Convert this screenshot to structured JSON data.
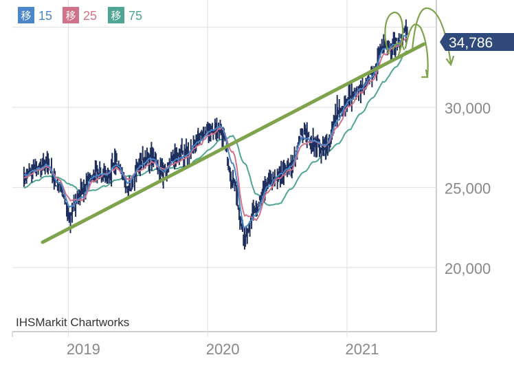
{
  "chart_data": {
    "type": "line",
    "y_ticks": [
      20000,
      25000,
      30000
    ],
    "y_tick_labels": [
      "20,000",
      "25,000",
      "30,000"
    ],
    "ylim": [
      16000,
      36700
    ],
    "x_ticks": [
      "2019",
      "2020",
      "2021"
    ],
    "grid": true,
    "watermark": "IHSMarkit Chartworks",
    "last_price_label": "34,786",
    "last_price_value": 34786,
    "legend": [
      {
        "box": "移",
        "label": "15",
        "color": "#4a86c8"
      },
      {
        "box": "移",
        "label": "25",
        "color": "#d0728a"
      },
      {
        "box": "移",
        "label": "75",
        "color": "#4fa593"
      }
    ],
    "colors": {
      "candle": "#1f2f5e",
      "ma15": "#4a86c8",
      "ma25": "#d0728a",
      "ma75": "#4fa593",
      "trendline": "#7ea34a",
      "annotation_arrows": "#7ea34a",
      "price_tag": "#2f4a7a"
    },
    "series": [
      {
        "type": "candles",
        "x": [
          "2018-08",
          "2018-09",
          "2018-10",
          "2018-11",
          "2018-12",
          "2019-01",
          "2019-02",
          "2019-03",
          "2019-04",
          "2019-05",
          "2019-06",
          "2019-07",
          "2019-08",
          "2019-09",
          "2019-10",
          "2019-11",
          "2019-12",
          "2020-01",
          "2020-02",
          "2020-03",
          "2020-04",
          "2020-05",
          "2020-06",
          "2020-07",
          "2020-08",
          "2020-09",
          "2020-10",
          "2020-11",
          "2020-12",
          "2021-01",
          "2021-02",
          "2021-03",
          "2021-04",
          "2021-05"
        ],
        "values": [
          25800,
          26200,
          26400,
          25100,
          23300,
          24800,
          25900,
          25700,
          26600,
          24900,
          26500,
          27000,
          25800,
          26900,
          27100,
          28000,
          28600,
          28700,
          25400,
          21900,
          23700,
          25300,
          25800,
          26400,
          28400,
          27800,
          27500,
          29600,
          30600,
          31200,
          32000,
          33800,
          33900,
          34786
        ]
      },
      {
        "type": "line",
        "name": "15",
        "x": [
          "2018-08",
          "2018-09",
          "2018-10",
          "2018-11",
          "2018-12",
          "2019-01",
          "2019-02",
          "2019-03",
          "2019-04",
          "2019-05",
          "2019-06",
          "2019-07",
          "2019-08",
          "2019-09",
          "2019-10",
          "2019-11",
          "2019-12",
          "2020-01",
          "2020-02",
          "2020-03",
          "2020-04",
          "2020-05",
          "2020-06",
          "2020-07",
          "2020-08",
          "2020-09",
          "2020-10",
          "2020-11",
          "2020-12",
          "2021-01",
          "2021-02",
          "2021-03",
          "2021-04",
          "2021-05"
        ],
        "values": [
          25700,
          26100,
          26400,
          25300,
          23800,
          24400,
          25700,
          25800,
          26400,
          25300,
          26300,
          26800,
          26000,
          26700,
          27000,
          27800,
          28500,
          28800,
          26500,
          22500,
          23300,
          25000,
          25800,
          26300,
          28100,
          27900,
          27600,
          29200,
          30400,
          31100,
          31900,
          33600,
          33900,
          34500
        ]
      },
      {
        "type": "line",
        "name": "25",
        "x": [
          "2018-08",
          "2018-09",
          "2018-10",
          "2018-11",
          "2018-12",
          "2019-01",
          "2019-02",
          "2019-03",
          "2019-04",
          "2019-05",
          "2019-06",
          "2019-07",
          "2019-08",
          "2019-09",
          "2019-10",
          "2019-11",
          "2019-12",
          "2020-01",
          "2020-02",
          "2020-03",
          "2020-04",
          "2020-05",
          "2020-06",
          "2020-07",
          "2020-08",
          "2020-09",
          "2020-10",
          "2020-11",
          "2020-12",
          "2021-01",
          "2021-02",
          "2021-03",
          "2021-04",
          "2021-05"
        ],
        "values": [
          25600,
          26000,
          26300,
          25500,
          24200,
          24200,
          25400,
          25800,
          26200,
          25500,
          26100,
          26600,
          26100,
          26500,
          26900,
          27600,
          28300,
          28700,
          27200,
          23300,
          23000,
          24700,
          25600,
          26100,
          27700,
          27900,
          27600,
          28800,
          30100,
          30900,
          31700,
          33300,
          33800,
          34300
        ]
      },
      {
        "type": "line",
        "name": "75",
        "x": [
          "2018-08",
          "2018-09",
          "2018-10",
          "2018-11",
          "2018-12",
          "2019-01",
          "2019-02",
          "2019-03",
          "2019-04",
          "2019-05",
          "2019-06",
          "2019-07",
          "2019-08",
          "2019-09",
          "2019-10",
          "2019-11",
          "2019-12",
          "2020-01",
          "2020-02",
          "2020-03",
          "2020-04",
          "2020-05",
          "2020-06",
          "2020-07",
          "2020-08",
          "2020-09",
          "2020-10",
          "2020-11",
          "2020-12",
          "2021-01",
          "2021-02",
          "2021-03",
          "2021-04",
          "2021-05"
        ],
        "values": [
          25000,
          25400,
          25700,
          25600,
          25200,
          24700,
          24800,
          25100,
          25500,
          25700,
          25800,
          26100,
          26200,
          26200,
          26300,
          26800,
          27400,
          28000,
          28200,
          26500,
          24600,
          23900,
          24000,
          24900,
          25900,
          26600,
          27100,
          27700,
          28600,
          29600,
          30600,
          31600,
          32500,
          33500
        ]
      }
    ]
  }
}
